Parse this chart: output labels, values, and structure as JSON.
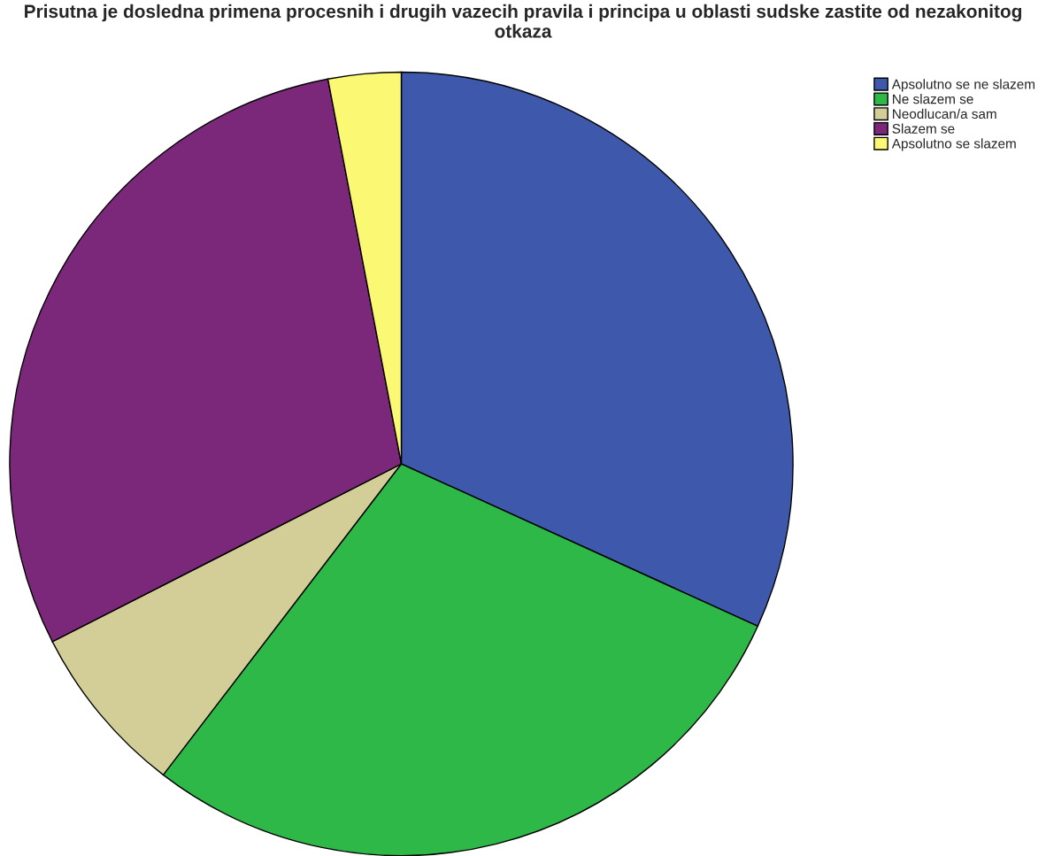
{
  "chart_data": {
    "type": "pie",
    "title": "Prisutna je dosledna primena procesnih i drugih vazecih pravila i principa u oblasti sudske zastite od nezakonitog otkaza",
    "categories": [
      "Apsolutno se ne slazem",
      "Ne slazem se",
      "Neodlucan/a sam",
      "Slazem se",
      "Apsolutno se slazem"
    ],
    "values": [
      31.8,
      28.6,
      7.1,
      29.5,
      3.0
    ],
    "colors": [
      "#3e58ac",
      "#2eb848",
      "#d3ce97",
      "#7b277a",
      "#fbf873"
    ],
    "legend": "top right"
  }
}
